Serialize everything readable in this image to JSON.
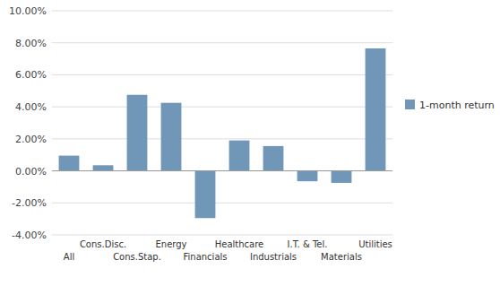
{
  "chart_data": {
    "type": "bar",
    "categories": [
      "All",
      "Cons.Disc.",
      "Cons.Stap.",
      "Energy",
      "Financials",
      "Healthcare",
      "Industrials",
      "I.T. & Tel.",
      "Materials",
      "Utilities"
    ],
    "series": [
      {
        "name": "1-month return",
        "color": "#7096B8",
        "values": [
          0.0095,
          0.0035,
          0.0475,
          0.0425,
          -0.0295,
          0.019,
          0.0155,
          -0.0065,
          -0.0075,
          0.0765
        ]
      }
    ],
    "ylim": [
      -0.04,
      0.1
    ],
    "yticks": [
      {
        "value": -0.04,
        "label": "-4.00%"
      },
      {
        "value": -0.02,
        "label": "-2.00%"
      },
      {
        "value": 0.0,
        "label": "0.00%"
      },
      {
        "value": 0.02,
        "label": "2.00%"
      },
      {
        "value": 0.04,
        "label": "4.00%"
      },
      {
        "value": 0.06,
        "label": "6.00%"
      },
      {
        "value": 0.08,
        "label": "8.00%"
      },
      {
        "value": 0.1,
        "label": "10.00%"
      }
    ],
    "grid": true,
    "legend": "right"
  }
}
